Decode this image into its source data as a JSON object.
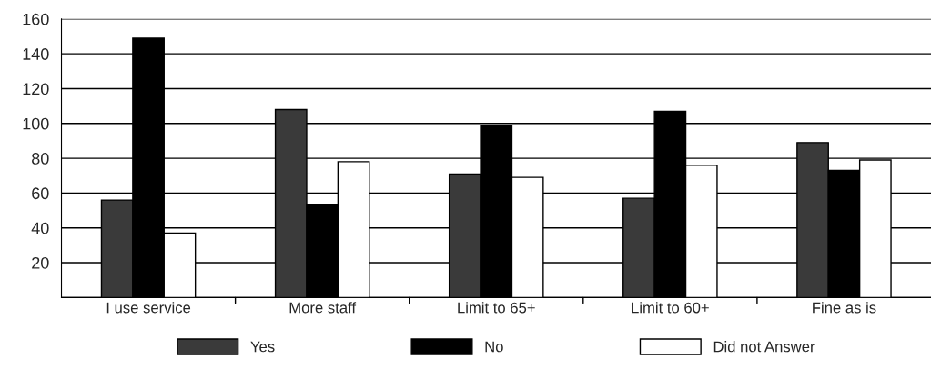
{
  "chart_data": {
    "type": "bar",
    "categories": [
      "I use service",
      "More staff",
      "Limit to 65+",
      "Limit to 60+",
      "Fine as is"
    ],
    "series": [
      {
        "name": "Yes",
        "color": "#3a3a3a",
        "values": [
          56,
          108,
          71,
          57,
          89
        ]
      },
      {
        "name": "No",
        "color": "#000000",
        "values": [
          149,
          53,
          99,
          107,
          73
        ]
      },
      {
        "name": "Did not Answer",
        "color": "#ffffff",
        "values": [
          37,
          78,
          69,
          76,
          79
        ]
      }
    ],
    "ylim": [
      0,
      160
    ],
    "yticks": [
      {
        "value": 0,
        "label": null
      },
      20,
      40,
      60,
      80,
      100,
      120,
      140,
      160
    ],
    "grid": "y",
    "legend": "bottom"
  }
}
